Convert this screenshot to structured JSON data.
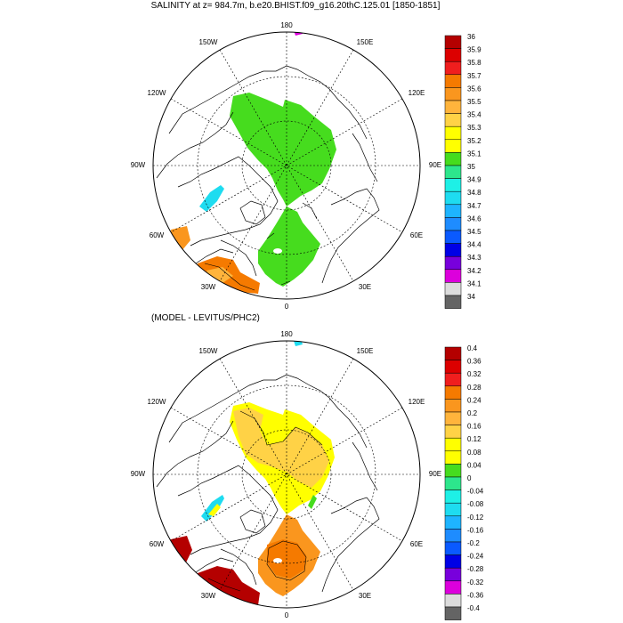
{
  "titles": {
    "main": "SALINITY at z= 984.7m, b.e20.BHIST.f09_g16.20thC.125.01 [1850-1851]",
    "diff": "(MODEL - LEVITUS/PHC2)"
  },
  "longitude_labels": {
    "top": "180",
    "bottom": "0",
    "upper_left": "150W",
    "upper_right": "150E",
    "left_upper": "120W",
    "right_upper": "120E",
    "left": "90W",
    "right": "90E",
    "left_lower": "60W",
    "right_lower": "60E",
    "lower_left": "30W",
    "lower_right": "30E"
  },
  "colorbar_top": {
    "labels": [
      "36",
      "35.9",
      "35.8",
      "35.7",
      "35.6",
      "35.5",
      "35.4",
      "35.3",
      "35.2",
      "35.1",
      "35",
      "34.9",
      "34.8",
      "34.7",
      "34.6",
      "34.5",
      "34.4",
      "34.3",
      "34.2",
      "34.1",
      "34"
    ],
    "colors": [
      "#b40000",
      "#dc0000",
      "#f01e1e",
      "#f57a00",
      "#fa961e",
      "#ffb43c",
      "#ffd246",
      "#ffff00",
      "#ffff00",
      "#46dc1e",
      "#2de68c",
      "#1ef0e6",
      "#1edcf0",
      "#1eb4ff",
      "#1e8cff",
      "#0a5aff",
      "#0000e6",
      "#7800dc",
      "#dc00dc",
      "#dcdcdc",
      "#646464"
    ]
  },
  "colorbar_bottom": {
    "labels": [
      "0.4",
      "0.36",
      "0.32",
      "0.28",
      "0.24",
      "0.2",
      "0.16",
      "0.12",
      "0.08",
      "0.04",
      "0",
      "-0.04",
      "-0.08",
      "-0.12",
      "-0.16",
      "-0.2",
      "-0.24",
      "-0.28",
      "-0.32",
      "-0.36",
      "-0.4"
    ],
    "colors": [
      "#b40000",
      "#dc0000",
      "#f01e1e",
      "#f57a00",
      "#fa961e",
      "#ffb43c",
      "#ffd246",
      "#ffff00",
      "#ffff00",
      "#46dc1e",
      "#2de68c",
      "#1ef0e6",
      "#1edcf0",
      "#1eb4ff",
      "#1e8cff",
      "#0a5aff",
      "#0000e6",
      "#7800dc",
      "#dc00dc",
      "#dcdcdc",
      "#646464"
    ]
  },
  "field_colors": {
    "green": "#46dc1e",
    "cyan": "#1edcf0",
    "orange": "#fa961e",
    "dark_orange": "#f57a00",
    "light_orange": "#ffb43c",
    "yellow": "#ffff00",
    "light_yellow": "#ffd246",
    "dark_red": "#b40000",
    "magenta": "#dc00dc"
  }
}
